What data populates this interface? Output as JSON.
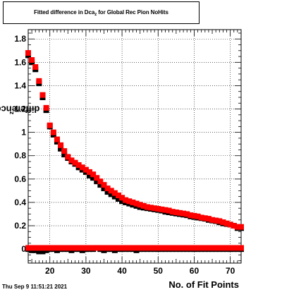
{
  "title_main": "Fitted difference in Dca",
  "title_sub": "z",
  "title_rest": " for Global Rec Pion NoHits",
  "timestamp": "Thu Sep  9 11:51:21 2021",
  "colors": {
    "series_red": "#ff0000",
    "series_black": "#000000",
    "frame": "#000000"
  },
  "chart_data": {
    "type": "scatter",
    "xlabel": "No. of Fit Points",
    "ylabel": "difference in Dca",
    "ylabel_sub": "z",
    "xlim": [
      14,
      73
    ],
    "ylim": [
      -0.12,
      1.88
    ],
    "xticks": [
      20,
      30,
      40,
      50,
      60,
      70
    ],
    "xtick_labels": [
      "20",
      "30",
      "40",
      "50",
      "60",
      "70"
    ],
    "yticks": [
      0,
      0.2,
      0.4,
      0.6,
      0.8,
      1,
      1.2,
      1.4,
      1.6,
      1.8
    ],
    "ytick_labels": [
      "0",
      "0.2",
      "0.4",
      "0.6",
      "0.8",
      "1",
      "1.2",
      "1.4",
      "1.6",
      "1.8"
    ],
    "grid": true,
    "series": [
      {
        "color": "#000000",
        "x": [
          14,
          15,
          16,
          17,
          18,
          19,
          20,
          21,
          22,
          23,
          24,
          25,
          26,
          27,
          28,
          29,
          30,
          31,
          32,
          33,
          34,
          35,
          36,
          37,
          38,
          39,
          40,
          41,
          42,
          43,
          44,
          45,
          46,
          47,
          48,
          49,
          50,
          51,
          52,
          53,
          54,
          55,
          56,
          57,
          58,
          59,
          60,
          61,
          62,
          63,
          64,
          65,
          66,
          67,
          68,
          69,
          70,
          71,
          72,
          73
        ],
        "y": [
          1.66,
          1.6,
          1.54,
          1.42,
          1.3,
          1.19,
          1.05,
          0.98,
          0.92,
          0.86,
          0.81,
          0.78,
          0.75,
          0.73,
          0.7,
          0.68,
          0.66,
          0.63,
          0.61,
          0.58,
          0.55,
          0.52,
          0.49,
          0.47,
          0.45,
          0.43,
          0.41,
          0.4,
          0.39,
          0.38,
          0.37,
          0.36,
          0.355,
          0.35,
          0.345,
          0.34,
          0.335,
          0.33,
          0.32,
          0.315,
          0.31,
          0.305,
          0.3,
          0.295,
          0.29,
          0.28,
          0.275,
          0.27,
          0.265,
          0.26,
          0.25,
          0.245,
          0.24,
          0.23,
          0.22,
          0.215,
          0.21,
          0.2,
          0.18,
          0.18
        ]
      },
      {
        "color": "#000000",
        "x": [
          14,
          15,
          16,
          17,
          18,
          19,
          20,
          21,
          22,
          23,
          24,
          25,
          26,
          27,
          28,
          29,
          30,
          31,
          32,
          33,
          34,
          35,
          36,
          37,
          38,
          39,
          40,
          41,
          42,
          43,
          44,
          45,
          46,
          47,
          48,
          49,
          50,
          51,
          52,
          53,
          54,
          55,
          56,
          57,
          58,
          59,
          60,
          61,
          62,
          63,
          64,
          65,
          66,
          67,
          68,
          69,
          70,
          71,
          72,
          73
        ],
        "y": [
          0,
          -0.01,
          -0.01,
          -0.02,
          -0.02,
          -0.01,
          0,
          0,
          -0.01,
          0,
          0,
          0,
          -0.01,
          0,
          0,
          -0.01,
          0,
          0,
          0,
          0.01,
          0,
          -0.01,
          0,
          0,
          -0.01,
          0,
          0,
          0,
          0,
          0,
          -0.01,
          0,
          0,
          0,
          0,
          0,
          0,
          0,
          0,
          0,
          0,
          0,
          0,
          0,
          0,
          0,
          0,
          0,
          0,
          0,
          0,
          0,
          0,
          0,
          0,
          0,
          0,
          0,
          0,
          0
        ]
      },
      {
        "color": "#ff0000",
        "x": [
          14,
          15,
          16,
          17,
          18,
          19,
          20,
          21,
          22,
          23,
          24,
          25,
          26,
          27,
          28,
          29,
          30,
          31,
          32,
          33,
          34,
          35,
          36,
          37,
          38,
          39,
          40,
          41,
          42,
          43,
          44,
          45,
          46,
          47,
          48,
          49,
          50,
          51,
          52,
          53,
          54,
          55,
          56,
          57,
          58,
          59,
          60,
          61,
          62,
          63,
          64,
          65,
          66,
          67,
          68,
          69,
          70,
          71,
          72,
          73
        ],
        "y": [
          1.68,
          1.62,
          1.56,
          1.44,
          1.32,
          1.21,
          1.06,
          1.0,
          0.94,
          0.89,
          0.84,
          0.79,
          0.76,
          0.74,
          0.72,
          0.7,
          0.68,
          0.66,
          0.64,
          0.61,
          0.58,
          0.55,
          0.52,
          0.5,
          0.48,
          0.46,
          0.44,
          0.42,
          0.41,
          0.4,
          0.39,
          0.38,
          0.37,
          0.36,
          0.355,
          0.35,
          0.345,
          0.34,
          0.335,
          0.33,
          0.32,
          0.315,
          0.31,
          0.305,
          0.3,
          0.29,
          0.285,
          0.28,
          0.27,
          0.265,
          0.26,
          0.25,
          0.245,
          0.24,
          0.23,
          0.22,
          0.21,
          0.2,
          0.19,
          0.19
        ]
      },
      {
        "color": "#ff0000",
        "x": [
          14,
          15,
          16,
          17,
          18,
          19,
          20,
          21,
          22,
          23,
          24,
          25,
          26,
          27,
          28,
          29,
          30,
          31,
          32,
          33,
          34,
          35,
          36,
          37,
          38,
          39,
          40,
          41,
          42,
          43,
          44,
          45,
          46,
          47,
          48,
          49,
          50,
          51,
          52,
          53,
          54,
          55,
          56,
          57,
          58,
          59,
          60,
          61,
          62,
          63,
          64,
          65,
          66,
          67,
          68,
          69,
          70,
          71,
          72,
          73
        ],
        "y": [
          0.01,
          0.01,
          0.01,
          0.01,
          0.01,
          0.01,
          0.01,
          0.01,
          0.01,
          0.01,
          0.01,
          0.01,
          0.01,
          0.01,
          0.01,
          0.01,
          0.01,
          0.01,
          0.01,
          0.01,
          0.01,
          0.01,
          0.01,
          0.01,
          0.01,
          0.01,
          0.01,
          0.01,
          0.01,
          0.01,
          0.01,
          0.01,
          0.01,
          0.01,
          0.01,
          0.01,
          0.01,
          0.01,
          0.01,
          0.01,
          0.01,
          0.01,
          0.01,
          0.01,
          0.01,
          0.01,
          0.01,
          0.01,
          0.01,
          0.01,
          0.01,
          0.01,
          0.01,
          0.01,
          0.01,
          0.01,
          0.01,
          0.01,
          0.01,
          0.01
        ]
      }
    ]
  }
}
